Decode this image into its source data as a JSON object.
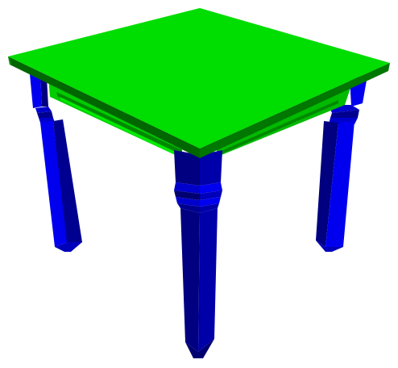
{
  "scene": {
    "subject": "table",
    "colors": {
      "background": "#ffffff",
      "top_face": "#00dd00",
      "top_side_front": "#006600",
      "top_side_right": "#007700",
      "apron": "#00bb00",
      "apron_dark": "#008800",
      "leg_dark": "#000080",
      "leg_light": "#0000ee",
      "leg_mid": "#0000aa"
    }
  }
}
